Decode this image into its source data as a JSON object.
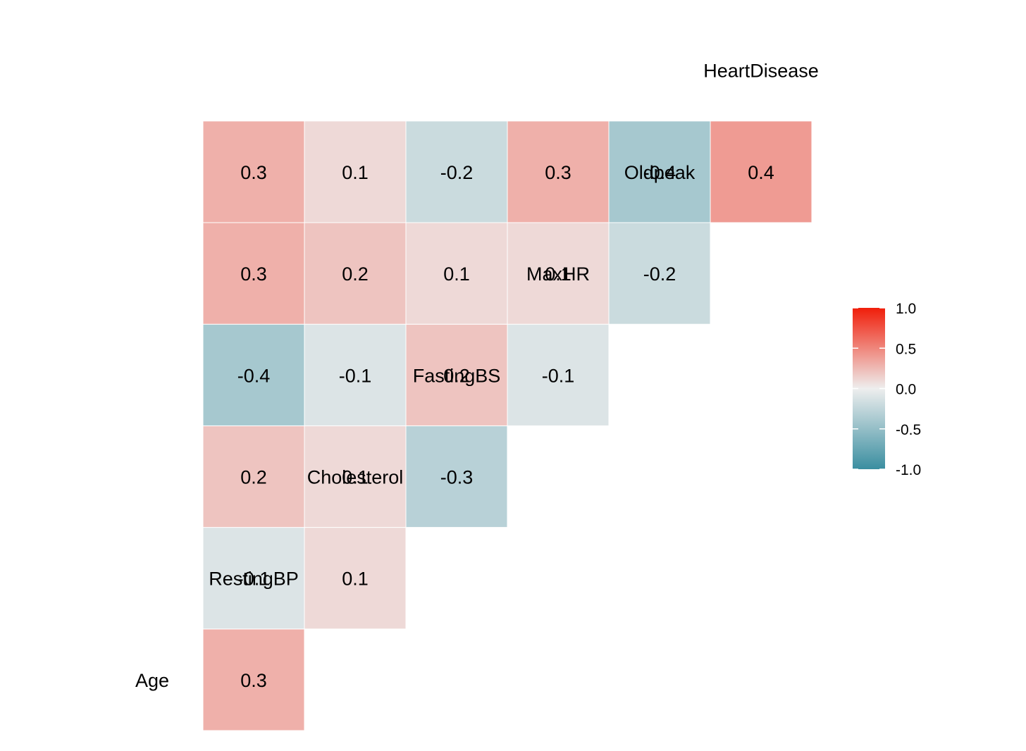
{
  "chart_data": {
    "type": "heatmap",
    "variables": [
      "Age",
      "RestingBP",
      "Cholesterol",
      "FastingBS",
      "MaxHR",
      "Oldpeak",
      "HeartDisease"
    ],
    "cells": [
      {
        "row": "RestingBP",
        "col": "Age",
        "value": 0.3,
        "label": "0.3"
      },
      {
        "row": "Cholesterol",
        "col": "Age",
        "value": -0.1,
        "label": "-0.1"
      },
      {
        "row": "Cholesterol",
        "col": "RestingBP",
        "value": 0.1,
        "label": "0.1"
      },
      {
        "row": "FastingBS",
        "col": "Age",
        "value": 0.2,
        "label": "0.2"
      },
      {
        "row": "FastingBS",
        "col": "RestingBP",
        "value": 0.1,
        "label": "0.1"
      },
      {
        "row": "FastingBS",
        "col": "Cholesterol",
        "value": -0.3,
        "label": "-0.3"
      },
      {
        "row": "MaxHR",
        "col": "Age",
        "value": -0.4,
        "label": "-0.4"
      },
      {
        "row": "MaxHR",
        "col": "RestingBP",
        "value": -0.1,
        "label": "-0.1"
      },
      {
        "row": "MaxHR",
        "col": "Cholesterol",
        "value": 0.2,
        "label": "0.2"
      },
      {
        "row": "MaxHR",
        "col": "FastingBS",
        "value": -0.1,
        "label": "-0.1"
      },
      {
        "row": "Oldpeak",
        "col": "Age",
        "value": 0.3,
        "label": "0.3"
      },
      {
        "row": "Oldpeak",
        "col": "RestingBP",
        "value": 0.2,
        "label": "0.2"
      },
      {
        "row": "Oldpeak",
        "col": "Cholesterol",
        "value": 0.1,
        "label": "0.1"
      },
      {
        "row": "Oldpeak",
        "col": "FastingBS",
        "value": 0.1,
        "label": "0.1"
      },
      {
        "row": "Oldpeak",
        "col": "MaxHR",
        "value": -0.2,
        "label": "-0.2"
      },
      {
        "row": "HeartDisease",
        "col": "Age",
        "value": 0.3,
        "label": "0.3"
      },
      {
        "row": "HeartDisease",
        "col": "RestingBP",
        "value": 0.1,
        "label": "0.1"
      },
      {
        "row": "HeartDisease",
        "col": "Cholesterol",
        "value": -0.2,
        "label": "-0.2"
      },
      {
        "row": "HeartDisease",
        "col": "FastingBS",
        "value": 0.3,
        "label": "0.3"
      },
      {
        "row": "HeartDisease",
        "col": "MaxHR",
        "value": -0.4,
        "label": "-0.4"
      },
      {
        "row": "HeartDisease",
        "col": "Oldpeak",
        "value": 0.4,
        "label": "0.4"
      }
    ],
    "legend": {
      "position": "right",
      "range": [
        -1.0,
        1.0
      ],
      "ticks": [
        1.0,
        0.5,
        0.0,
        -0.5,
        -1.0
      ],
      "tick_labels": [
        "1.0",
        "0.5",
        "0.0",
        "-0.5",
        "-1.0"
      ]
    },
    "colors": {
      "low": "#3A8EA0",
      "mid": "#EEEEEE",
      "high": "#F01E0A"
    },
    "title": "",
    "xlabel": "",
    "ylabel": "",
    "grid": false
  }
}
